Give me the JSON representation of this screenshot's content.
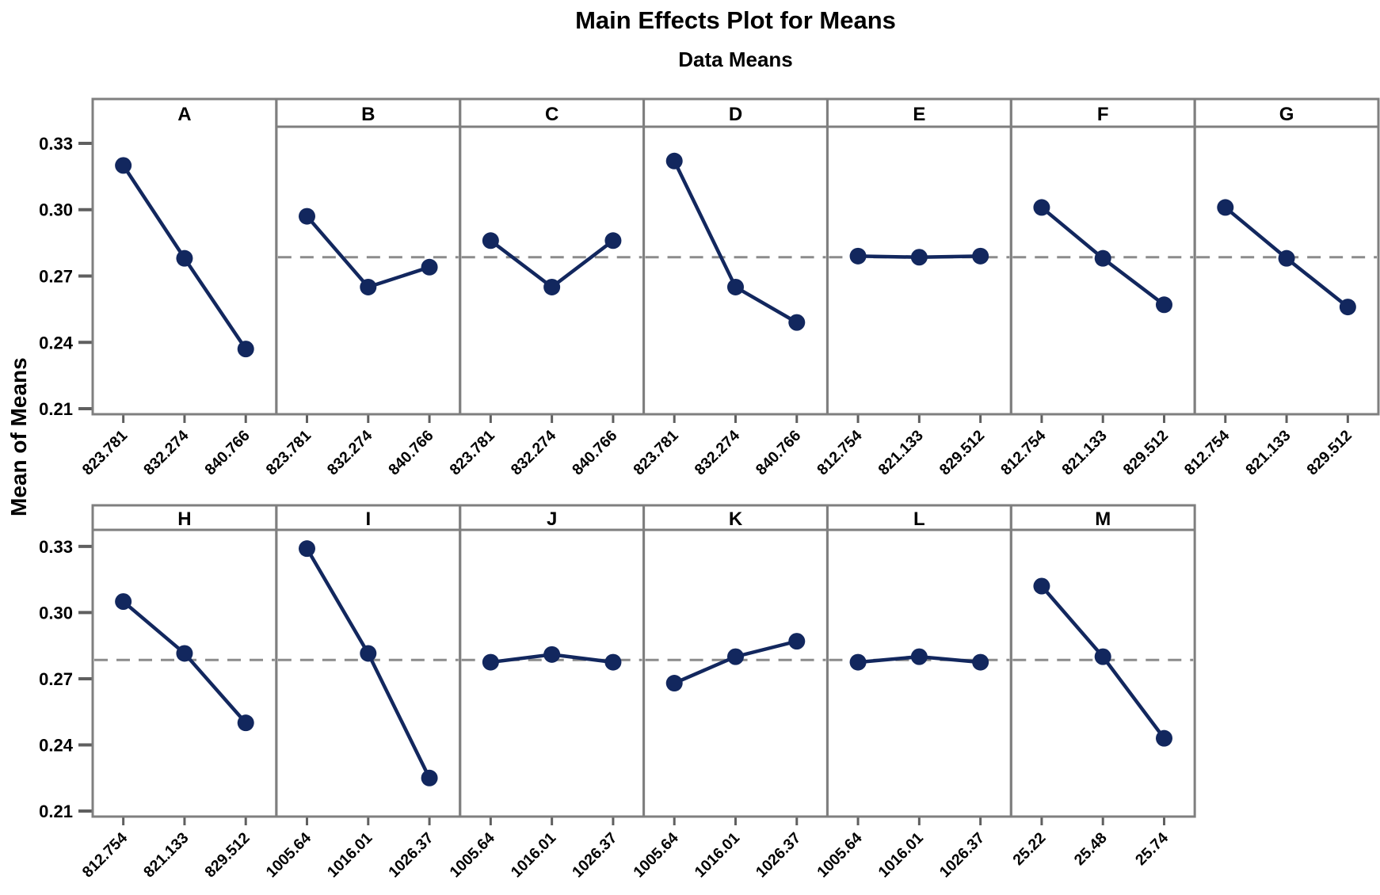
{
  "title": "Main Effects Plot for Means",
  "subtitle": "Data Means",
  "ylabel": "Mean of Means",
  "colors": {
    "background": "#ffffff",
    "series_line": "#12275e",
    "marker": "#12275e",
    "panel_border": "#7f7f7f",
    "reference_dash": "#8c8c8c",
    "tick_mark": "#5f5f5f",
    "text": "#000000"
  },
  "chart_data": {
    "type": "line",
    "title": "Main Effects Plot for Means",
    "subtitle": "Data Means",
    "ylabel": "Mean of Means",
    "yticks": [
      0.33,
      0.3,
      0.27,
      0.24,
      0.21
    ],
    "ylim": [
      0.2075,
      0.3375
    ],
    "grand_mean": 0.2785,
    "grid": false,
    "legend": "none",
    "rows": [
      {
        "panels": [
          {
            "factor": "A",
            "categories": [
              "823.781",
              "832.274",
              "840.766"
            ],
            "values": [
              0.32,
              0.278,
              0.237
            ],
            "reference_line": false,
            "band_line": false,
            "show_y_axis": true
          },
          {
            "factor": "B",
            "categories": [
              "823.781",
              "832.274",
              "840.766"
            ],
            "values": [
              0.297,
              0.265,
              0.274
            ],
            "reference_line": true,
            "band_line": true,
            "show_y_axis": false
          },
          {
            "factor": "C",
            "categories": [
              "823.781",
              "832.274",
              "840.766"
            ],
            "values": [
              0.286,
              0.265,
              0.286
            ],
            "reference_line": true,
            "band_line": true,
            "show_y_axis": false
          },
          {
            "factor": "D",
            "categories": [
              "823.781",
              "832.274",
              "840.766"
            ],
            "values": [
              0.322,
              0.265,
              0.249
            ],
            "reference_line": true,
            "band_line": true,
            "show_y_axis": false
          },
          {
            "factor": "E",
            "categories": [
              "812.754",
              "821.133",
              "829.512"
            ],
            "values": [
              0.279,
              0.2785,
              0.279
            ],
            "reference_line": true,
            "band_line": true,
            "show_y_axis": false
          },
          {
            "factor": "F",
            "categories": [
              "812.754",
              "821.133",
              "829.512"
            ],
            "values": [
              0.301,
              0.278,
              0.257
            ],
            "reference_line": true,
            "band_line": true,
            "show_y_axis": false
          },
          {
            "factor": "G",
            "categories": [
              "812.754",
              "821.133",
              "829.512"
            ],
            "values": [
              0.301,
              0.278,
              0.256
            ],
            "reference_line": true,
            "band_line": true,
            "show_y_axis": false
          }
        ]
      },
      {
        "panels": [
          {
            "factor": "H",
            "categories": [
              "812.754",
              "821.133",
              "829.512"
            ],
            "values": [
              0.305,
              0.2815,
              0.25
            ],
            "reference_line": true,
            "band_line": true,
            "show_y_axis": true
          },
          {
            "factor": "I",
            "categories": [
              "1005.64",
              "1016.01",
              "1026.37"
            ],
            "values": [
              0.329,
              0.2815,
              0.225
            ],
            "reference_line": true,
            "band_line": true,
            "show_y_axis": false
          },
          {
            "factor": "J",
            "categories": [
              "1005.64",
              "1016.01",
              "1026.37"
            ],
            "values": [
              0.2775,
              0.281,
              0.2775
            ],
            "reference_line": true,
            "band_line": true,
            "show_y_axis": false
          },
          {
            "factor": "K",
            "categories": [
              "1005.64",
              "1016.01",
              "1026.37"
            ],
            "values": [
              0.268,
              0.28,
              0.287
            ],
            "reference_line": true,
            "band_line": true,
            "show_y_axis": false
          },
          {
            "factor": "L",
            "categories": [
              "1005.64",
              "1016.01",
              "1026.37"
            ],
            "values": [
              0.2775,
              0.28,
              0.2775
            ],
            "reference_line": true,
            "band_line": true,
            "show_y_axis": false
          },
          {
            "factor": "M",
            "categories": [
              "25.22",
              "25.48",
              "25.74"
            ],
            "values": [
              0.312,
              0.28,
              0.243
            ],
            "reference_line": true,
            "band_line": true,
            "show_y_axis": false
          }
        ]
      }
    ]
  }
}
